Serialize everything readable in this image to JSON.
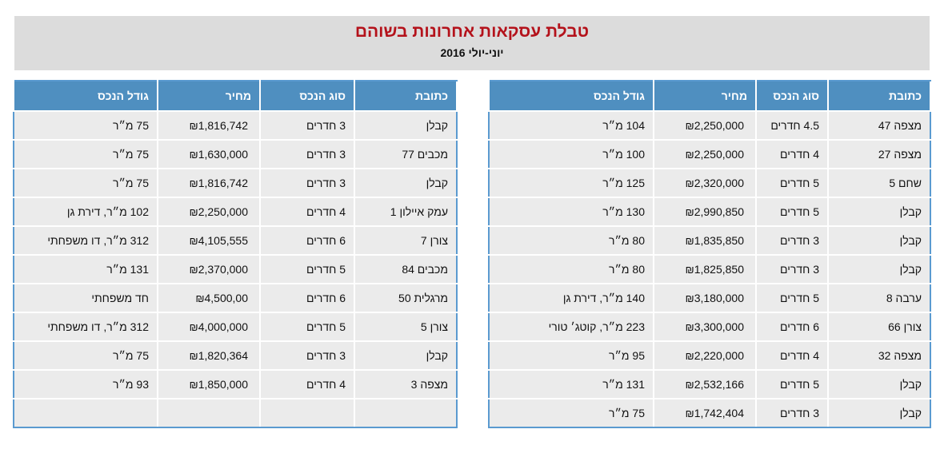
{
  "header": {
    "title": "טבלת עסקאות אחרונות בשוהם",
    "subtitle": "יוני-יולי 2016"
  },
  "columns": {
    "address": "כתובת",
    "type": "סוג הנכס",
    "price": "מחיר",
    "size": "גודל הנכס"
  },
  "currency_symbol": "₪",
  "right_table": {
    "rows": [
      {
        "address": "מצפה 47",
        "type": "4.5 חדרים",
        "price": "2,250,000",
        "size": "104 מ״ר"
      },
      {
        "address": "מצפה 27",
        "type": "4 חדרים",
        "price": "2,250,000",
        "size": "100 מ״ר"
      },
      {
        "address": "שחם 5",
        "type": "5 חדרים",
        "price": "2,320,000",
        "size": "125 מ״ר"
      },
      {
        "address": "קבלן",
        "type": "5 חדרים",
        "price": "2,990,850",
        "size": "130 מ״ר"
      },
      {
        "address": "קבלן",
        "type": "3 חדרים",
        "price": "1,835,850",
        "size": "80 מ״ר"
      },
      {
        "address": "קבלן",
        "type": "3 חדרים",
        "price": "1,825,850",
        "size": "80 מ״ר"
      },
      {
        "address": "ערבה 8",
        "type": "5 חדרים",
        "price": "3,180,000",
        "size": "140 מ״ר, דירת גן"
      },
      {
        "address": "צורן 66",
        "type": "6 חדרים",
        "price": "3,300,000",
        "size": "223 מ״ר, קוטג׳ טורי"
      },
      {
        "address": "מצפה 32",
        "type": "4 חדרים",
        "price": "2,220,000",
        "size": "95 מ״ר"
      },
      {
        "address": "קבלן",
        "type": "5 חדרים",
        "price": "2,532,166",
        "size": "131 מ״ר"
      },
      {
        "address": "קבלן",
        "type": "3 חדרים",
        "price": "1,742,404",
        "size": "75 מ״ר"
      }
    ]
  },
  "left_table": {
    "rows": [
      {
        "address": "קבלן",
        "type": "3 חדרים",
        "price": "1,816,742",
        "size": "75 מ״ר"
      },
      {
        "address": "מכבים 77",
        "type": "3 חדרים",
        "price": "1,630,000",
        "size": "75 מ״ר"
      },
      {
        "address": "קבלן",
        "type": "3 חדרים",
        "price": "1,816,742",
        "size": "75 מ״ר"
      },
      {
        "address": "עמק איילון 1",
        "type": "4 חדרים",
        "price": "2,250,000",
        "size": "102 מ״ר, דירת גן"
      },
      {
        "address": "צורן 7",
        "type": "6 חדרים",
        "price": "4,105,555",
        "size": "312 מ״ר, דו משפחתי"
      },
      {
        "address": "מכבים 84",
        "type": "5 חדרים",
        "price": "2,370,000",
        "size": "131 מ״ר"
      },
      {
        "address": "מרגלית 50",
        "type": "6 חדרים",
        "price": "4,500,00",
        "size": "חד משפחתי"
      },
      {
        "address": "צורן 5",
        "type": "5 חדרים",
        "price": "4,000,000",
        "size": "312 מ״ר, דו משפחתי"
      },
      {
        "address": "קבלן",
        "type": "3 חדרים",
        "price": "1,820,364",
        "size": "75 מ״ר"
      },
      {
        "address": "מצפה 3",
        "type": "4 חדרים",
        "price": "1,850,000",
        "size": "93 מ״ר"
      },
      {
        "address": "",
        "type": "",
        "price": "",
        "size": ""
      }
    ]
  },
  "colors": {
    "header_bg": "#4f8fc0",
    "title_red": "#b4121b",
    "band_gray": "#dcdcdc",
    "cell_gray": "#ebebeb"
  }
}
